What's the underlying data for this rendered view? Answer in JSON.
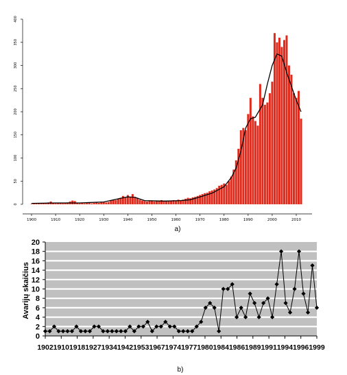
{
  "chart_data": [
    {
      "type": "bar",
      "caption": "a)",
      "title": "",
      "xlabel": "",
      "ylabel": "",
      "xlim": [
        1900,
        2012
      ],
      "ylim": [
        0,
        400
      ],
      "x_ticks": [
        "1900",
        "1910",
        "1920",
        "1930",
        "1940",
        "1950",
        "1960",
        "1970",
        "1980",
        "1990",
        "2000",
        "2010"
      ],
      "y_ticks": [
        "0",
        "50",
        "100",
        "150",
        "200",
        "250",
        "300",
        "350",
        "400"
      ],
      "grid": false,
      "bar_color": "#e02a1c",
      "trend_color": "#000000",
      "years": [
        1900,
        1901,
        1902,
        1903,
        1904,
        1905,
        1906,
        1907,
        1908,
        1909,
        1910,
        1911,
        1912,
        1913,
        1914,
        1915,
        1916,
        1917,
        1918,
        1919,
        1920,
        1921,
        1922,
        1923,
        1924,
        1925,
        1926,
        1927,
        1928,
        1929,
        1930,
        1931,
        1932,
        1933,
        1934,
        1935,
        1936,
        1937,
        1938,
        1939,
        1940,
        1941,
        1942,
        1943,
        1944,
        1945,
        1946,
        1947,
        1948,
        1949,
        1950,
        1951,
        1952,
        1953,
        1954,
        1955,
        1956,
        1957,
        1958,
        1959,
        1960,
        1961,
        1962,
        1963,
        1964,
        1965,
        1966,
        1967,
        1968,
        1969,
        1970,
        1971,
        1972,
        1973,
        1974,
        1975,
        1976,
        1977,
        1978,
        1979,
        1980,
        1981,
        1982,
        1983,
        1984,
        1985,
        1986,
        1987,
        1988,
        1989,
        1990,
        1991,
        1992,
        1993,
        1994,
        1995,
        1996,
        1997,
        1998,
        1999,
        2000,
        2001,
        2002,
        2003,
        2004,
        2005,
        2006,
        2007,
        2008,
        2009,
        2010,
        2011,
        2012
      ],
      "values": [
        1,
        2,
        2,
        3,
        2,
        2,
        3,
        4,
        6,
        3,
        2,
        3,
        3,
        2,
        3,
        4,
        6,
        8,
        7,
        3,
        2,
        3,
        2,
        3,
        3,
        2,
        3,
        4,
        3,
        4,
        5,
        4,
        5,
        8,
        10,
        9,
        12,
        14,
        18,
        14,
        20,
        15,
        22,
        16,
        14,
        10,
        8,
        7,
        6,
        8,
        7,
        6,
        7,
        8,
        9,
        8,
        7,
        8,
        7,
        9,
        8,
        10,
        9,
        10,
        12,
        14,
        13,
        15,
        16,
        18,
        20,
        22,
        24,
        25,
        28,
        30,
        32,
        35,
        40,
        42,
        45,
        42,
        50,
        60,
        75,
        95,
        120,
        160,
        165,
        160,
        195,
        230,
        190,
        180,
        170,
        260,
        230,
        215,
        220,
        240,
        265,
        370,
        350,
        360,
        340,
        355,
        365,
        300,
        280,
        240,
        230,
        245,
        185
      ],
      "trend": [
        [
          1900,
          2
        ],
        [
          1910,
          3
        ],
        [
          1920,
          3
        ],
        [
          1930,
          5
        ],
        [
          1937,
          13
        ],
        [
          1940,
          16
        ],
        [
          1943,
          15
        ],
        [
          1947,
          8
        ],
        [
          1955,
          7
        ],
        [
          1962,
          8
        ],
        [
          1966,
          10
        ],
        [
          1970,
          16
        ],
        [
          1975,
          24
        ],
        [
          1980,
          38
        ],
        [
          1983,
          58
        ],
        [
          1985,
          78
        ],
        [
          1987,
          115
        ],
        [
          1989,
          165
        ],
        [
          1991,
          185
        ],
        [
          1993,
          188
        ],
        [
          1996,
          215
        ],
        [
          1998,
          260
        ],
        [
          2000,
          300
        ],
        [
          2002,
          325
        ],
        [
          2004,
          320
        ],
        [
          2006,
          285
        ],
        [
          2008,
          255
        ],
        [
          2010,
          225
        ],
        [
          2012,
          200
        ]
      ]
    },
    {
      "type": "line",
      "caption": "b)",
      "title": "",
      "ylabel": "Avarijų skaičius",
      "xlabel": "",
      "xlim": [
        1902,
        1999
      ],
      "ylim": [
        0,
        20
      ],
      "x_ticks": [
        "1902",
        "1910",
        "1918",
        "1927",
        "1934",
        "1942",
        "1953",
        "1967",
        "1974",
        "1977",
        "1980",
        "1984",
        "1986",
        "1989",
        "1991",
        "1994",
        "1996",
        "1999"
      ],
      "y_ticks": [
        "0",
        "2",
        "4",
        "6",
        "8",
        "10",
        "12",
        "14",
        "16",
        "18",
        "20"
      ],
      "grid": true,
      "plot_background": "#c0c0c0",
      "line_color": "#000000",
      "values": [
        1,
        1,
        2,
        1,
        1,
        1,
        1,
        2,
        1,
        1,
        1,
        2,
        2,
        1,
        1,
        1,
        1,
        1,
        1,
        2,
        1,
        2,
        2,
        3,
        1,
        2,
        2,
        3,
        2,
        2,
        1,
        1,
        1,
        1,
        2,
        3,
        6,
        7,
        6,
        1,
        10,
        10,
        11,
        4,
        6,
        4,
        9,
        7,
        4,
        7,
        8,
        4,
        11,
        18,
        7,
        5,
        10,
        18,
        9,
        5,
        15,
        6
      ]
    }
  ]
}
